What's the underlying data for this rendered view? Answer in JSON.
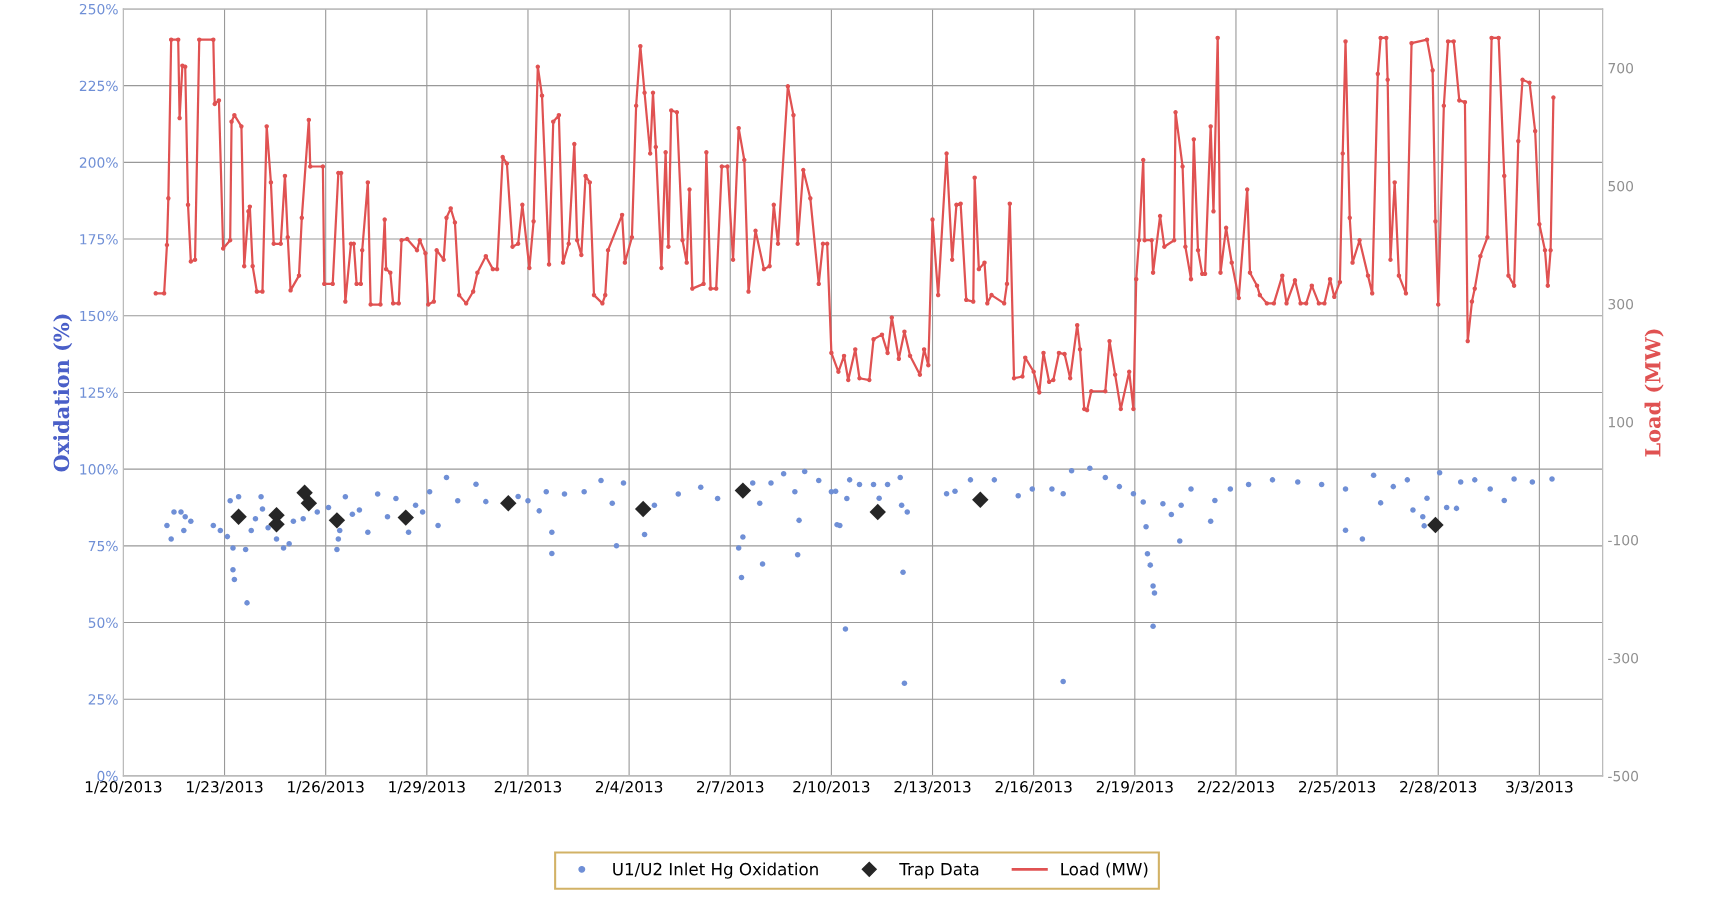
{
  "chart_data": {
    "type": "scatter",
    "ylabel": "Oxidation (%)",
    "y2label": "Load (MW)",
    "xlim": [
      "2013-01-20T00:00",
      "2013-03-04T21:00"
    ],
    "xticks": [
      {
        "value": "2013-01-20",
        "label": "1/20/2013"
      },
      {
        "value": "2013-01-23",
        "label": "1/23/2013"
      },
      {
        "value": "2013-01-26",
        "label": "1/26/2013"
      },
      {
        "value": "2013-01-29",
        "label": "1/29/2013"
      },
      {
        "value": "2013-02-01",
        "label": "2/1/2013"
      },
      {
        "value": "2013-02-04",
        "label": "2/4/2013"
      },
      {
        "value": "2013-02-07",
        "label": "2/7/2013"
      },
      {
        "value": "2013-02-10",
        "label": "2/10/2013"
      },
      {
        "value": "2013-02-13",
        "label": "2/13/2013"
      },
      {
        "value": "2013-02-16",
        "label": "2/16/2013"
      },
      {
        "value": "2013-02-19",
        "label": "2/19/2013"
      },
      {
        "value": "2013-02-22",
        "label": "2/22/2013"
      },
      {
        "value": "2013-02-25",
        "label": "2/25/2013"
      },
      {
        "value": "2013-02-28",
        "label": "2/28/2013"
      },
      {
        "value": "2013-03-03",
        "label": "3/3/2013"
      }
    ],
    "ylim": [
      0,
      250
    ],
    "yticks": [
      {
        "value": 0,
        "label": "0%"
      },
      {
        "value": 25,
        "label": "25%"
      },
      {
        "value": 50,
        "label": "50%"
      },
      {
        "value": 75,
        "label": "75%"
      },
      {
        "value": 100,
        "label": "100%"
      },
      {
        "value": 125,
        "label": "125%"
      },
      {
        "value": 150,
        "label": "150%"
      },
      {
        "value": 175,
        "label": "175%"
      },
      {
        "value": 200,
        "label": "200%"
      },
      {
        "value": 225,
        "label": "225%"
      },
      {
        "value": 250,
        "label": "250%"
      }
    ],
    "y2lim": [
      -500,
      800
    ],
    "y2ticks": [
      -500,
      -300,
      -100,
      100,
      300,
      500,
      700
    ],
    "grid": true,
    "legend": "bottom",
    "series": [
      {
        "name": "U1/U2 Inlet Hg Oxidation",
        "marker": "circle",
        "color": "#6f8fd6",
        "x": [
          "2013-01-21T07:00",
          "2013-01-21T10:00",
          "2013-01-21T12:00",
          "2013-01-21T17:00",
          "2013-01-21T20:00",
          "2013-01-22T00:00",
          "2013-01-21T19:00",
          "2013-01-22T16:00",
          "2013-01-22T21:00",
          "2013-01-23T02:00",
          "2013-01-23T04:00",
          "2013-01-23T10:00",
          "2013-01-23T06:00",
          "2013-01-23T06:00",
          "2013-01-23T07:00",
          "2013-01-23T16:00",
          "2013-01-23T15:00",
          "2013-01-23T19:00",
          "2013-01-23T22:00",
          "2013-01-24T02:00",
          "2013-01-24T03:00",
          "2013-01-24T07:00",
          "2013-01-24T13:00",
          "2013-01-24T18:00",
          "2013-01-24T22:00",
          "2013-01-25T01:00",
          "2013-01-25T08:00",
          "2013-01-25T18:00",
          "2013-01-26T02:00",
          "2013-01-26T09:00",
          "2013-01-26T08:00",
          "2013-01-26T10:00",
          "2013-01-26T14:00",
          "2013-01-26T19:00",
          "2013-01-27T00:00",
          "2013-01-27T06:00",
          "2013-01-27T13:00",
          "2013-01-27T20:00",
          "2013-01-28T02:00",
          "2013-01-28T11:00",
          "2013-01-28T16:00",
          "2013-01-28T21:00",
          "2013-01-29T02:00",
          "2013-01-29T08:00",
          "2013-01-29T14:00",
          "2013-01-29T22:00",
          "2013-01-30T11:00",
          "2013-01-30T18:00",
          "2013-01-31T17:00",
          "2013-02-01T00:00",
          "2013-02-01T08:00",
          "2013-02-01T13:00",
          "2013-02-01T17:00",
          "2013-02-01T17:00",
          "2013-02-02T02:00",
          "2013-02-02T16:00",
          "2013-02-03T04:00",
          "2013-02-03T12:00",
          "2013-02-03T15:00",
          "2013-02-03T20:00",
          "2013-02-04T11:00",
          "2013-02-04T18:00",
          "2013-02-05T11:00",
          "2013-02-06T03:00",
          "2013-02-06T15:00",
          "2013-02-07T06:00",
          "2013-02-07T08:00",
          "2013-02-07T09:00",
          "2013-02-07T16:00",
          "2013-02-07T21:00",
          "2013-02-07T23:00",
          "2013-02-08T05:00",
          "2013-02-08T14:00",
          "2013-02-08T22:00",
          "2013-02-09T00:00",
          "2013-02-09T01:00",
          "2013-02-09T05:00",
          "2013-02-09T15:00",
          "2013-02-10T00:00",
          "2013-02-10T06:00",
          "2013-02-10T10:00",
          "2013-02-10T11:00",
          "2013-02-10T03:00",
          "2013-02-10T04:00",
          "2013-02-10T13:00",
          "2013-02-10T20:00",
          "2013-02-11T06:00",
          "2013-02-11T10:00",
          "2013-02-11T16:00",
          "2013-02-12T01:00",
          "2013-02-12T03:00",
          "2013-02-12T04:00",
          "2013-02-12T02:00",
          "2013-02-12T06:00",
          "2013-02-13T10:00",
          "2013-02-13T16:00",
          "2013-02-14T03:00",
          "2013-02-14T20:00",
          "2013-02-15T13:00",
          "2013-02-15T23:00",
          "2013-02-16T13:00",
          "2013-02-16T21:00",
          "2013-02-16T21:00",
          "2013-02-17T03:00",
          "2013-02-17T16:00",
          "2013-02-18T03:00",
          "2013-02-18T13:00",
          "2013-02-18T23:00",
          "2013-02-19T06:00",
          "2013-02-19T08:00",
          "2013-02-19T09:00",
          "2013-02-19T11:00",
          "2013-02-19T13:00",
          "2013-02-19T14:00",
          "2013-02-19T13:00",
          "2013-02-19T20:00",
          "2013-02-20T02:00",
          "2013-02-20T08:00",
          "2013-02-20T09:00",
          "2013-02-20T16:00",
          "2013-02-21T06:00",
          "2013-02-21T09:00",
          "2013-02-21T20:00",
          "2013-02-22T09:00",
          "2013-02-23T02:00",
          "2013-02-23T20:00",
          "2013-02-24T13:00",
          "2013-02-25T06:00",
          "2013-02-25T06:00",
          "2013-02-25T18:00",
          "2013-02-26T02:00",
          "2013-02-26T07:00",
          "2013-02-26T16:00",
          "2013-02-27T02:00",
          "2013-02-27T06:00",
          "2013-02-27T13:00",
          "2013-02-27T14:00",
          "2013-02-27T16:00",
          "2013-02-28T01:00",
          "2013-02-28T06:00",
          "2013-02-28T13:00",
          "2013-02-28T16:00",
          "2013-03-01T02:00",
          "2013-03-01T13:00",
          "2013-03-01T23:00",
          "2013-03-02T06:00",
          "2013-03-02T19:00",
          "2013-03-03T09:00"
        ],
        "values": [
          81.6,
          77.2,
          86,
          86,
          84.5,
          83,
          80,
          81.6,
          80,
          78,
          89.7,
          91,
          74.3,
          67.2,
          64,
          56.4,
          73.8,
          80,
          83.8,
          91,
          87,
          80.9,
          77.2,
          74.3,
          75.7,
          83,
          83.8,
          86,
          87.5,
          77.2,
          73.8,
          80,
          91,
          85.3,
          86.7,
          79.4,
          91.9,
          84.5,
          90.4,
          79.4,
          88.2,
          86,
          92.6,
          81.6,
          97.3,
          89.7,
          95.1,
          89.4,
          91.1,
          89.7,
          86.4,
          92.6,
          79.4,
          72.5,
          91.9,
          92.6,
          96.3,
          88.9,
          75,
          95.5,
          78.7,
          88.2,
          91.9,
          94.1,
          90.4,
          74.3,
          64.7,
          77.9,
          95.5,
          88.9,
          69.1,
          95.5,
          98.5,
          92.6,
          72.1,
          83.3,
          99.2,
          96.3,
          92.6,
          81.6,
          47.9,
          90.4,
          92.8,
          81.9,
          96.5,
          95,
          95,
          90.5,
          95,
          97.3,
          66.4,
          30.2,
          88.2,
          86,
          92,
          92.8,
          96.5,
          96.5,
          91.3,
          93.5,
          93.5,
          92,
          30.8,
          99.5,
          100.3,
          97.3,
          94.3,
          92,
          89.3,
          81.2,
          72.4,
          68.7,
          61.9,
          59.6,
          48.8,
          88.7,
          85.2,
          76.6,
          88.2,
          93.5,
          83,
          89.8,
          93.5,
          95,
          96.5,
          95.8,
          95,
          93.5,
          80.1,
          77.2,
          98,
          89,
          94.3,
          96.5,
          86.7,
          84.5,
          81.5,
          90.5,
          98.8,
          87.5,
          87.2,
          95.8,
          96.5,
          93.5,
          89.8,
          96.8,
          95.8,
          96.8
        ]
      },
      {
        "name": "Trap Data",
        "marker": "diamond",
        "color": "#262626",
        "x": [
          "2013-01-23T10:00",
          "2013-01-24T13:00",
          "2013-01-24T13:00",
          "2013-01-25T09:00",
          "2013-01-25T12:00",
          "2013-01-26T08:00",
          "2013-01-28T09:00",
          "2013-01-31T10:00",
          "2013-02-04T10:00",
          "2013-02-07T09:00",
          "2013-02-11T09:00",
          "2013-02-14T10:00",
          "2013-02-27T22:00"
        ],
        "values": [
          84.5,
          85,
          82,
          92.3,
          88.9,
          83.3,
          84.2,
          88.9,
          87,
          93,
          86,
          90,
          81.8
        ]
      },
      {
        "name": "Load (MW)",
        "type": "line",
        "axis": "y2",
        "marker": "circle",
        "color": "#e05252",
        "x": [
          "2013-01-20T23:00",
          "2013-01-21T05:00",
          "2013-01-21T07:00",
          "2013-01-21T08:00",
          "2013-01-21T10:00",
          "2013-01-21T15:00",
          "2013-01-21T16:00",
          "2013-01-21T18:00",
          "2013-01-21T20:00",
          "2013-01-21T22:00",
          "2013-01-22T00:00",
          "2013-01-22T03:00",
          "2013-01-22T06:00",
          "2013-01-22T16:00",
          "2013-01-22T17:00",
          "2013-01-22T20:00",
          "2013-01-22T23:00",
          "2013-01-23T04:00",
          "2013-01-23T05:00",
          "2013-01-23T07:00",
          "2013-01-23T12:00",
          "2013-01-23T14:00",
          "2013-01-23T17:00",
          "2013-01-23T18:00",
          "2013-01-23T20:00",
          "2013-01-23T23:00",
          "2013-01-24T03:00",
          "2013-01-24T06:00",
          "2013-01-24T09:00",
          "2013-01-24T11:00",
          "2013-01-24T16:00",
          "2013-01-24T19:00",
          "2013-01-24T21:00",
          "2013-01-24T23:00",
          "2013-01-25T05:00",
          "2013-01-25T07:00",
          "2013-01-25T12:00",
          "2013-01-25T13:00",
          "2013-01-25T22:00",
          "2013-01-25T23:00",
          "2013-01-26T05:00",
          "2013-01-26T09:00",
          "2013-01-26T11:00",
          "2013-01-26T14:00",
          "2013-01-26T18:00",
          "2013-01-26T20:00",
          "2013-01-26T22:00",
          "2013-01-27T01:00",
          "2013-01-27T02:00",
          "2013-01-27T06:00",
          "2013-01-27T08:00",
          "2013-01-27T15:00",
          "2013-01-27T18:00",
          "2013-01-27T19:00",
          "2013-01-27T22:00",
          "2013-01-28T00:00",
          "2013-01-28T04:00",
          "2013-01-28T06:00",
          "2013-01-28T10:00",
          "2013-01-28T17:00",
          "2013-01-28T19:00",
          "2013-01-28T23:00",
          "2013-01-29T01:00",
          "2013-01-29T05:00",
          "2013-01-29T07:00",
          "2013-01-29T12:00",
          "2013-01-29T14:00",
          "2013-01-29T17:00",
          "2013-01-29T20:00",
          "2013-01-29T23:00",
          "2013-01-30T04:00",
          "2013-01-30T09:00",
          "2013-01-30T12:00",
          "2013-01-30T18:00",
          "2013-01-30T23:00",
          "2013-01-31T02:00",
          "2013-01-31T06:00",
          "2013-01-31T09:00",
          "2013-01-31T13:00",
          "2013-01-31T17:00",
          "2013-01-31T20:00",
          "2013-02-01T01:00",
          "2013-02-01T04:00",
          "2013-02-01T07:00",
          "2013-02-01T10:00",
          "2013-02-01T15:00",
          "2013-02-01T18:00",
          "2013-02-01T22:00",
          "2013-02-02T01:00",
          "2013-02-02T05:00",
          "2013-02-02T09:00",
          "2013-02-02T11:00",
          "2013-02-02T14:00",
          "2013-02-02T17:00",
          "2013-02-02T20:00",
          "2013-02-02T23:00",
          "2013-02-03T05:00",
          "2013-02-03T07:00",
          "2013-02-03T09:00",
          "2013-02-03T19:00",
          "2013-02-03T21:00",
          "2013-02-04T02:00",
          "2013-02-04T05:00",
          "2013-02-04T08:00",
          "2013-02-04T11:00",
          "2013-02-04T15:00",
          "2013-02-04T17:00",
          "2013-02-04T19:00",
          "2013-02-04T23:00",
          "2013-02-05T02:00",
          "2013-02-05T04:00",
          "2013-02-05T06:00",
          "2013-02-05T10:00",
          "2013-02-05T14:00",
          "2013-02-05T17:00",
          "2013-02-05T19:00",
          "2013-02-05T21:00",
          "2013-02-06T05:00",
          "2013-02-06T07:00",
          "2013-02-06T10:00",
          "2013-02-06T14:00",
          "2013-02-06T18:00",
          "2013-02-06T22:00",
          "2013-02-07T02:00",
          "2013-02-07T06:00",
          "2013-02-07T10:00",
          "2013-02-07T13:00",
          "2013-02-07T18:00",
          "2013-02-08T00:00",
          "2013-02-08T04:00",
          "2013-02-08T07:00",
          "2013-02-08T10:00",
          "2013-02-08T17:00",
          "2013-02-08T21:00",
          "2013-02-09T00:00",
          "2013-02-09T04:00",
          "2013-02-09T09:00",
          "2013-02-09T15:00",
          "2013-02-09T18:00",
          "2013-02-09T21:00",
          "2013-02-10T00:00",
          "2013-02-10T05:00",
          "2013-02-10T09:00",
          "2013-02-10T12:00",
          "2013-02-10T17:00",
          "2013-02-10T20:00",
          "2013-02-11T03:00",
          "2013-02-11T06:00",
          "2013-02-11T12:00",
          "2013-02-11T16:00",
          "2013-02-11T19:00",
          "2013-02-12T00:00",
          "2013-02-12T04:00",
          "2013-02-12T08:00",
          "2013-02-12T15:00",
          "2013-02-12T18:00",
          "2013-02-12T21:00",
          "2013-02-13T00:00",
          "2013-02-13T04:00",
          "2013-02-13T10:00",
          "2013-02-13T14:00",
          "2013-02-13T17:00",
          "2013-02-13T20:00",
          "2013-02-14T00:00",
          "2013-02-14T05:00",
          "2013-02-14T06:00",
          "2013-02-14T09:00",
          "2013-02-14T13:00",
          "2013-02-14T15:00",
          "2013-02-14T18:00",
          "2013-02-15T03:00",
          "2013-02-15T05:00",
          "2013-02-15T07:00",
          "2013-02-15T10:00",
          "2013-02-15T16:00",
          "2013-02-15T18:00",
          "2013-02-16T00:00",
          "2013-02-16T04:00",
          "2013-02-16T07:00",
          "2013-02-16T11:00",
          "2013-02-16T14:00",
          "2013-02-16T18:00",
          "2013-02-16T22:00",
          "2013-02-17T02:00",
          "2013-02-17T07:00",
          "2013-02-17T09:00",
          "2013-02-17T12:00",
          "2013-02-17T14:00",
          "2013-02-17T17:00",
          "2013-02-18T03:00",
          "2013-02-18T06:00",
          "2013-02-18T10:00",
          "2013-02-18T14:00",
          "2013-02-18T20:00",
          "2013-02-18T23:00",
          "2013-02-19T01:00",
          "2013-02-19T03:00",
          "2013-02-19T06:00",
          "2013-02-19T07:00",
          "2013-02-19T12:00",
          "2013-02-19T13:00",
          "2013-02-19T18:00",
          "2013-02-19T21:00",
          "2013-02-20T04:00",
          "2013-02-20T05:00",
          "2013-02-20T10:00",
          "2013-02-20T12:00",
          "2013-02-20T16:00",
          "2013-02-20T18:00",
          "2013-02-20T21:00",
          "2013-02-21T00:00",
          "2013-02-21T02:00",
          "2013-02-21T06:00",
          "2013-02-21T08:00",
          "2013-02-21T11:00",
          "2013-02-21T13:00",
          "2013-02-21T17:00",
          "2013-02-21T21:00",
          "2013-02-22T02:00",
          "2013-02-22T08:00",
          "2013-02-22T10:00",
          "2013-02-22T15:00",
          "2013-02-22T17:00",
          "2013-02-22T22:00",
          "2013-02-23T03:00",
          "2013-02-23T09:00",
          "2013-02-23T12:00",
          "2013-02-23T18:00",
          "2013-02-23T22:00",
          "2013-02-24T02:00",
          "2013-02-24T06:00",
          "2013-02-24T11:00",
          "2013-02-24T15:00",
          "2013-02-24T19:00",
          "2013-02-24T22:00",
          "2013-02-25T02:00",
          "2013-02-25T04:00",
          "2013-02-25T06:00",
          "2013-02-25T09:00",
          "2013-02-25T11:00",
          "2013-02-25T16:00",
          "2013-02-25T22:00",
          "2013-02-26T01:00",
          "2013-02-26T05:00",
          "2013-02-26T07:00",
          "2013-02-26T11:00",
          "2013-02-26T12:00",
          "2013-02-26T14:00",
          "2013-02-26T17:00",
          "2013-02-26T20:00",
          "2013-02-27T01:00",
          "2013-02-27T05:00",
          "2013-02-27T16:00",
          "2013-02-27T20:00",
          "2013-02-27T22:00",
          "2013-02-28T00:00",
          "2013-02-28T04:00",
          "2013-02-28T07:00",
          "2013-02-28T11:00",
          "2013-02-28T15:00",
          "2013-02-28T19:00",
          "2013-02-28T21:00",
          "2013-03-01T00:00",
          "2013-03-01T02:00",
          "2013-03-01T06:00",
          "2013-03-01T11:00",
          "2013-03-01T14:00",
          "2013-03-01T19:00",
          "2013-03-01T23:00",
          "2013-03-02T02:00",
          "2013-03-02T06:00",
          "2013-03-02T09:00",
          "2013-03-02T12:00",
          "2013-03-02T17:00",
          "2013-03-02T21:00",
          "2013-03-03T00:00",
          "2013-03-03T04:00",
          "2013-03-03T06:00",
          "2013-03-03T08:00",
          "2013-03-03T10:00"
        ],
        "values": [
          318,
          318,
          400,
          479,
          748,
          748,
          615,
          704,
          702,
          468,
          372,
          375,
          748,
          748,
          639,
          645,
          394,
          408,
          609,
          620,
          601,
          364,
          457,
          465,
          364,
          321,
          321,
          601,
          506,
          402,
          402,
          517,
          413,
          323,
          348,
          446,
          612,
          533,
          533,
          334,
          334,
          522,
          522,
          304,
          402,
          402,
          334,
          334,
          391,
          506,
          299,
          299,
          443,
          359,
          353,
          301,
          301,
          408,
          410,
          391,
          408,
          386,
          299,
          304,
          391,
          375,
          446,
          462,
          438,
          315,
          301,
          321,
          353,
          381,
          359,
          359,
          549,
          538,
          397,
          402,
          468,
          361,
          440,
          702,
          653,
          367,
          609,
          620,
          370,
          402,
          571,
          408,
          383,
          517,
          506,
          315,
          301,
          315,
          391,
          451,
          370,
          413,
          636,
          737,
          658,
          555,
          658,
          566,
          361,
          557,
          397,
          628,
          625,
          408,
          370,
          494,
          326,
          334,
          557,
          326,
          326,
          533,
          533,
          375,
          598,
          544,
          321,
          424,
          359,
          364,
          468,
          402,
          669,
          620,
          402,
          527,
          479,
          334,
          402,
          402,
          217,
          185,
          212,
          171,
          223,
          174,
          171,
          240,
          248,
          217,
          277,
          207,
          253,
          212,
          180,
          223,
          196,
          443,
          315,
          555,
          375,
          468,
          470,
          307,
          304,
          514,
          359,
          370,
          301,
          315,
          301,
          334,
          470,
          174,
          177,
          209,
          185,
          150,
          217,
          168,
          171,
          217,
          215,
          174,
          264,
          223,
          122,
          120,
          152,
          152,
          237,
          180,
          122,
          185,
          122,
          342,
          408,
          544,
          408,
          408,
          353,
          449,
          397,
          408,
          625,
          533,
          397,
          342,
          579,
          391,
          351,
          351,
          601,
          457,
          751,
          353,
          429,
          370,
          310,
          494,
          353,
          331,
          315,
          301,
          301,
          348,
          301,
          340,
          301,
          301,
          331,
          301,
          301,
          342,
          312,
          337,
          555,
          745,
          446,
          370,
          408,
          348,
          318,
          690,
          751,
          751,
          680,
          375,
          506,
          348,
          318,
          742,
          748,
          696,
          440,
          299,
          636,
          745,
          745,
          645,
          642,
          237,
          304,
          326,
          381,
          413,
          751,
          751,
          517,
          348,
          331,
          576,
          680,
          675,
          593,
          435,
          391,
          331,
          391,
          650
        ]
      }
    ]
  }
}
